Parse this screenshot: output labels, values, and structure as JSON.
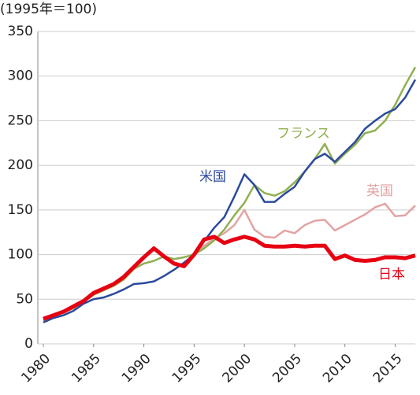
{
  "chart_data": {
    "type": "line",
    "subtitle": "(1995年＝100)",
    "x": [
      1980,
      1981,
      1982,
      1983,
      1984,
      1985,
      1986,
      1987,
      1988,
      1989,
      1990,
      1991,
      1992,
      1993,
      1994,
      1995,
      1996,
      1997,
      1998,
      1999,
      2000,
      2001,
      2002,
      2003,
      2004,
      2005,
      2006,
      2007,
      2008,
      2009,
      2010,
      2011,
      2012,
      2013,
      2014,
      2015,
      2016,
      2017
    ],
    "xlim": [
      1980,
      2017
    ],
    "xticks": [
      1980,
      1985,
      1990,
      1995,
      2000,
      2005,
      2010,
      2015
    ],
    "ylim": [
      0,
      350
    ],
    "yticks": [
      0,
      50,
      100,
      150,
      200,
      250,
      300,
      350
    ],
    "grid": true,
    "series": [
      {
        "name": "英国",
        "color": "#e3a3a3",
        "values": [
          null,
          null,
          null,
          null,
          null,
          null,
          null,
          null,
          null,
          null,
          null,
          null,
          null,
          null,
          null,
          100,
          110,
          118,
          124,
          133,
          150,
          128,
          120,
          119,
          127,
          124,
          133,
          138,
          139,
          127,
          133,
          139,
          145,
          153,
          157,
          143,
          144,
          155
        ]
      },
      {
        "name": "フランス",
        "color": "#8fb050",
        "values": [
          26,
          31,
          35,
          40,
          47,
          55,
          60,
          65,
          72,
          84,
          90,
          93,
          98,
          95,
          97,
          100,
          107,
          116,
          128,
          144,
          158,
          178,
          169,
          166,
          171,
          181,
          193,
          207,
          224,
          202,
          213,
          223,
          236,
          239,
          250,
          268,
          290,
          310
        ]
      },
      {
        "name": "米国",
        "color": "#2b4a9c",
        "values": [
          24,
          29,
          32,
          37,
          45,
          50,
          52,
          56,
          61,
          67,
          68,
          70,
          76,
          83,
          91,
          100,
          115,
          130,
          142,
          165,
          190,
          178,
          159,
          159,
          168,
          176,
          193,
          207,
          213,
          204,
          215,
          226,
          241,
          250,
          258,
          263,
          276,
          296
        ]
      },
      {
        "name": "日本",
        "color": "#e60012",
        "values": [
          28,
          32,
          36,
          42,
          48,
          57,
          62,
          67,
          75,
          86,
          97,
          107,
          98,
          90,
          87,
          100,
          117,
          120,
          113,
          117,
          120,
          117,
          110,
          109,
          109,
          110,
          109,
          110,
          110,
          95,
          99,
          94,
          93,
          94,
          97,
          97,
          96,
          99
        ]
      }
    ]
  }
}
